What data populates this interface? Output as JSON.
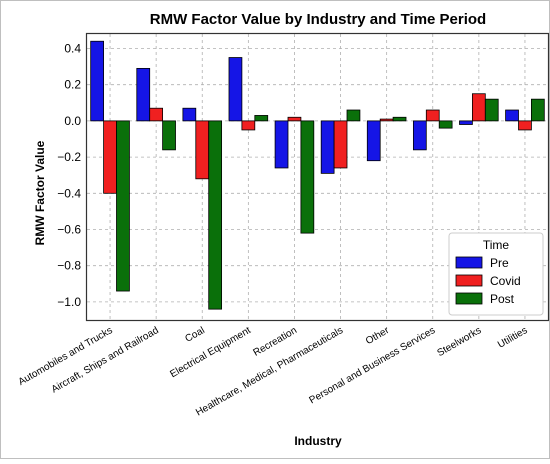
{
  "chart_data": {
    "type": "bar",
    "title": "RMW Factor Value by Industry and Time Period",
    "xlabel": "Industry",
    "ylabel": "RMW Factor Value",
    "ylim": [
      -1.1,
      0.48
    ],
    "yticks": [
      0.4,
      0.2,
      0.0,
      -0.2,
      -0.4,
      -0.6,
      -0.8,
      -1.0
    ],
    "ytick_labels": [
      "0.4",
      "0.2",
      "0.0",
      "−0.2",
      "−0.4",
      "−0.6",
      "−0.8",
      "−1.0"
    ],
    "categories": [
      "Automobiles and Trucks",
      "Aircraft, Ships and Railroad",
      "Coal",
      "Electrical Equipment",
      "Recreation",
      "Healthcare, Medical, Pharmaceuticals",
      "Other",
      "Personal and Business Services",
      "Steelworks",
      "Utilities"
    ],
    "series": [
      {
        "name": "Pre",
        "color": "#1515e6",
        "values": [
          0.44,
          0.29,
          0.07,
          0.35,
          -0.26,
          -0.29,
          -0.22,
          -0.16,
          -0.02,
          0.06
        ]
      },
      {
        "name": "Covid",
        "color": "#f02020",
        "values": [
          -0.4,
          0.07,
          -0.32,
          -0.05,
          0.02,
          -0.26,
          0.01,
          0.06,
          0.15,
          -0.05
        ]
      },
      {
        "name": "Post",
        "color": "#0a700a",
        "values": [
          -0.94,
          -0.16,
          -1.04,
          0.03,
          -0.62,
          0.06,
          0.02,
          -0.04,
          0.12,
          0.12
        ]
      }
    ],
    "legend": {
      "title": "Time",
      "position": "lower-right"
    },
    "grid": true
  }
}
